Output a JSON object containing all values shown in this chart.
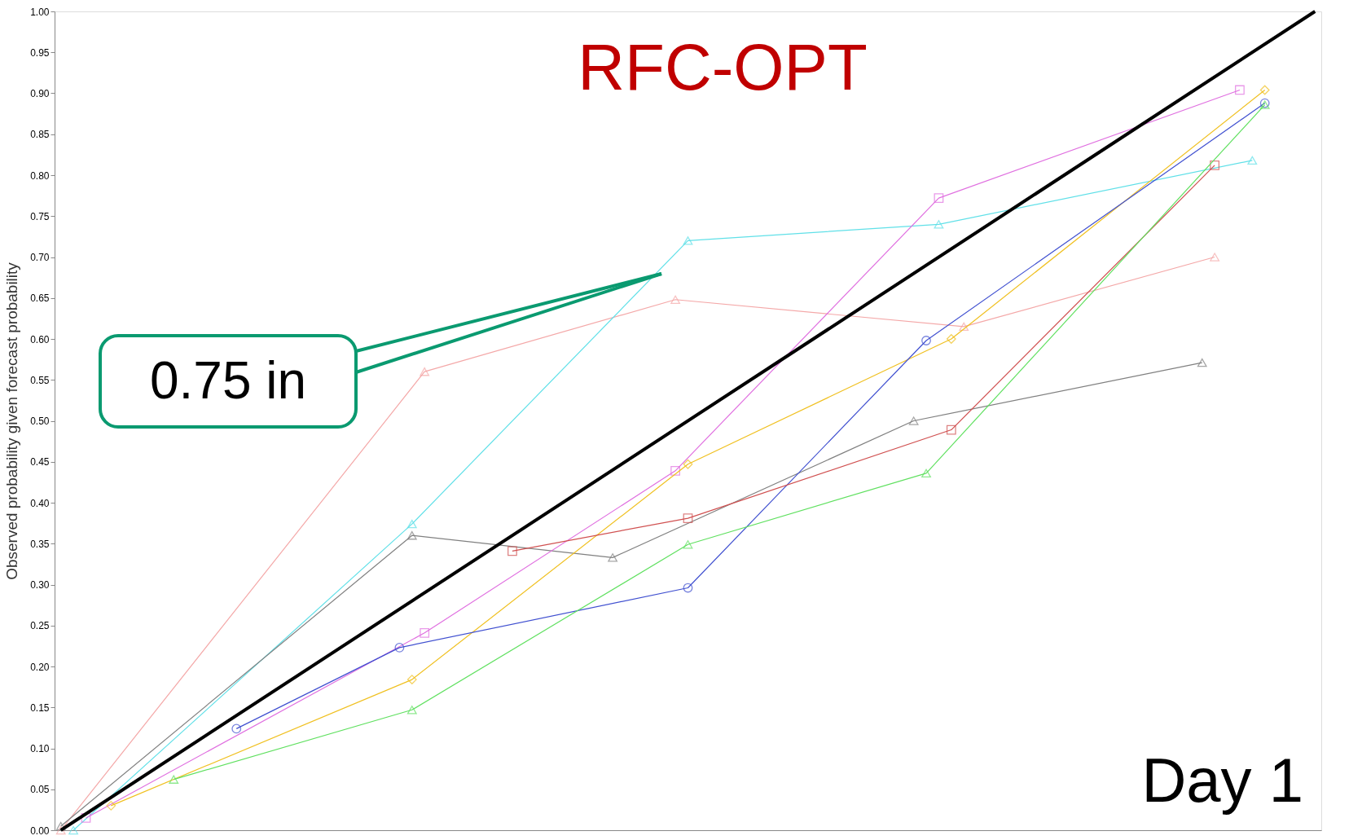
{
  "chart_data": {
    "type": "line",
    "title": "RFC-OPT",
    "ylabel": "Observed probability given forecast probability",
    "categories": [
      null,
      null,
      null,
      null,
      null,
      null,
      null,
      null,
      null,
      null,
      null,
      null,
      null,
      null,
      null,
      null,
      null,
      null,
      null,
      null,
      null,
      null,
      null,
      null,
      null,
      null,
      null,
      null,
      null,
      null,
      null,
      null,
      null,
      null,
      null,
      null,
      null,
      null,
      null,
      null,
      null,
      null,
      null,
      null,
      null,
      null,
      null,
      null,
      null,
      null,
      null,
      null,
      null,
      null,
      null,
      null,
      null,
      null,
      null,
      null,
      null,
      null,
      null,
      null,
      null,
      null,
      null,
      null,
      null,
      null,
      null,
      null,
      null,
      null,
      null,
      null,
      null,
      null,
      null,
      null,
      null,
      null,
      null,
      null,
      null,
      null,
      null,
      null,
      null,
      null,
      null,
      null,
      null,
      null,
      null,
      null,
      null,
      null,
      null,
      null,
      null
    ],
    "ylim": [
      0,
      1
    ],
    "yticks": [
      {
        "value": 0,
        "label": "0.00"
      },
      {
        "value": 0.05,
        "label": "0.05"
      },
      {
        "value": 0.1,
        "label": "0.10"
      },
      {
        "value": 0.15,
        "label": "0.15"
      },
      {
        "value": 0.2,
        "label": "0.20"
      },
      {
        "value": 0.25,
        "label": "0.25"
      },
      {
        "value": 0.3,
        "label": "0.30"
      },
      {
        "value": 0.35,
        "label": "0.35"
      },
      {
        "value": 0.4,
        "label": "0.40"
      },
      {
        "value": 0.45,
        "label": "0.45"
      },
      {
        "value": 0.5,
        "label": "0.50"
      },
      {
        "value": 0.55,
        "label": "0.55"
      },
      {
        "value": 0.6,
        "label": "0.60"
      },
      {
        "value": 0.65,
        "label": "0.65"
      },
      {
        "value": 0.7,
        "label": "0.70"
      },
      {
        "value": 0.75,
        "label": "0.75"
      },
      {
        "value": 0.8,
        "label": "0.80"
      },
      {
        "value": 0.85,
        "label": "0.85"
      },
      {
        "value": 0.9,
        "label": "0.90"
      },
      {
        "value": 0.95,
        "label": "0.95"
      },
      {
        "value": 1,
        "label": "1.00"
      }
    ],
    "tick_labels": "y",
    "grid": false,
    "series": [
      {
        "color": "#f4a8a8",
        "marker": "triangle",
        "values": [
          0.0,
          null,
          null,
          null,
          null,
          null,
          null,
          null,
          null,
          null,
          null,
          null,
          null,
          null,
          null,
          null,
          null,
          null,
          null,
          null,
          null,
          null,
          null,
          null,
          null,
          null,
          null,
          null,
          null,
          0.56,
          null,
          null,
          null,
          null,
          null,
          null,
          null,
          null,
          null,
          null,
          null,
          null,
          null,
          null,
          null,
          null,
          null,
          null,
          null,
          0.648,
          null,
          null,
          null,
          null,
          null,
          null,
          null,
          null,
          null,
          null,
          null,
          null,
          null,
          null,
          null,
          null,
          null,
          null,
          null,
          null,
          null,
          null,
          0.615,
          null,
          null,
          null,
          null,
          null,
          null,
          null,
          null,
          null,
          null,
          null,
          null,
          null,
          null,
          null,
          null,
          null,
          null,
          null,
          0.7,
          null,
          null,
          null,
          null,
          null,
          null,
          null,
          null
        ]
      },
      {
        "color": "#60e0e8",
        "marker": "triangle",
        "values": [
          null,
          0.0,
          null,
          null,
          null,
          null,
          null,
          null,
          null,
          null,
          null,
          null,
          null,
          null,
          null,
          null,
          null,
          null,
          null,
          null,
          null,
          null,
          null,
          null,
          null,
          null,
          null,
          null,
          0.374,
          null,
          null,
          null,
          null,
          null,
          null,
          null,
          null,
          null,
          null,
          null,
          null,
          null,
          null,
          null,
          null,
          null,
          null,
          null,
          null,
          null,
          0.72,
          null,
          null,
          null,
          null,
          null,
          null,
          null,
          null,
          null,
          null,
          null,
          null,
          null,
          null,
          null,
          null,
          null,
          null,
          null,
          0.74,
          null,
          null,
          null,
          null,
          null,
          null,
          null,
          null,
          null,
          null,
          null,
          null,
          null,
          null,
          null,
          null,
          null,
          null,
          null,
          null,
          null,
          null,
          null,
          null,
          0.818,
          null,
          null,
          null,
          null,
          null
        ]
      },
      {
        "color": "#808080",
        "marker": "triangle",
        "values": [
          0.005,
          null,
          null,
          null,
          null,
          null,
          null,
          null,
          null,
          null,
          null,
          null,
          null,
          null,
          null,
          null,
          null,
          null,
          null,
          null,
          null,
          null,
          null,
          null,
          null,
          null,
          null,
          null,
          0.36,
          null,
          null,
          null,
          null,
          null,
          null,
          null,
          null,
          null,
          null,
          null,
          null,
          null,
          null,
          null,
          0.333,
          null,
          null,
          null,
          null,
          null,
          null,
          null,
          null,
          null,
          null,
          null,
          null,
          null,
          null,
          null,
          null,
          null,
          null,
          null,
          null,
          null,
          null,
          null,
          0.5,
          null,
          null,
          null,
          null,
          null,
          null,
          null,
          null,
          null,
          null,
          null,
          null,
          null,
          null,
          null,
          null,
          null,
          null,
          null,
          null,
          null,
          null,
          0.571,
          null,
          null,
          null,
          null,
          null,
          null,
          null,
          null,
          null
        ]
      },
      {
        "color": "#e070e0",
        "marker": "square",
        "values": [
          null,
          null,
          0.015,
          null,
          null,
          null,
          null,
          null,
          null,
          null,
          null,
          null,
          null,
          null,
          null,
          null,
          null,
          null,
          null,
          null,
          null,
          null,
          null,
          null,
          null,
          null,
          null,
          null,
          null,
          0.241,
          null,
          null,
          null,
          null,
          null,
          null,
          null,
          null,
          null,
          null,
          null,
          null,
          null,
          null,
          null,
          null,
          null,
          null,
          null,
          0.439,
          null,
          null,
          null,
          null,
          null,
          null,
          null,
          null,
          null,
          null,
          null,
          null,
          null,
          null,
          null,
          null,
          null,
          null,
          null,
          null,
          0.772,
          null,
          null,
          null,
          null,
          null,
          null,
          null,
          null,
          null,
          null,
          null,
          null,
          null,
          null,
          null,
          null,
          null,
          null,
          null,
          null,
          null,
          null,
          null,
          0.904,
          null,
          null,
          null,
          null,
          null,
          null
        ]
      },
      {
        "color": "#f0c020",
        "marker": "diamond",
        "values": [
          null,
          null,
          null,
          null,
          0.03,
          null,
          null,
          null,
          null,
          null,
          null,
          null,
          null,
          null,
          null,
          null,
          null,
          null,
          null,
          null,
          null,
          null,
          null,
          null,
          null,
          null,
          null,
          null,
          0.184,
          null,
          null,
          null,
          null,
          null,
          null,
          null,
          null,
          null,
          null,
          null,
          null,
          null,
          null,
          null,
          null,
          null,
          null,
          null,
          null,
          null,
          0.447,
          null,
          null,
          null,
          null,
          null,
          null,
          null,
          null,
          null,
          null,
          null,
          null,
          null,
          null,
          null,
          null,
          null,
          null,
          null,
          null,
          0.6,
          null,
          null,
          null,
          null,
          null,
          null,
          null,
          null,
          null,
          null,
          null,
          null,
          null,
          null,
          null,
          null,
          null,
          null,
          null,
          null,
          null,
          null,
          null,
          null,
          0.904,
          null,
          null,
          null,
          null
        ]
      },
      {
        "color": "#4050d0",
        "marker": "circle",
        "values": [
          null,
          null,
          null,
          null,
          null,
          null,
          null,
          null,
          null,
          null,
          null,
          null,
          null,
          null,
          0.124,
          null,
          null,
          null,
          null,
          null,
          null,
          null,
          null,
          null,
          null,
          null,
          null,
          0.223,
          null,
          null,
          null,
          null,
          null,
          null,
          null,
          null,
          null,
          null,
          null,
          null,
          null,
          null,
          null,
          null,
          null,
          null,
          null,
          null,
          null,
          null,
          0.296,
          null,
          null,
          null,
          null,
          null,
          null,
          null,
          null,
          null,
          null,
          null,
          null,
          null,
          null,
          null,
          null,
          null,
          null,
          0.598,
          null,
          null,
          null,
          null,
          null,
          null,
          null,
          null,
          null,
          null,
          null,
          null,
          null,
          null,
          null,
          null,
          null,
          null,
          null,
          null,
          null,
          null,
          null,
          null,
          null,
          null,
          0.888,
          null,
          null,
          null,
          null
        ]
      },
      {
        "color": "#d05050",
        "marker": "square",
        "values": [
          null,
          null,
          null,
          null,
          null,
          null,
          null,
          null,
          null,
          null,
          null,
          null,
          null,
          null,
          null,
          null,
          null,
          null,
          null,
          null,
          null,
          null,
          null,
          null,
          null,
          null,
          null,
          null,
          null,
          null,
          null,
          null,
          null,
          null,
          null,
          null,
          0.341,
          null,
          null,
          null,
          null,
          null,
          null,
          null,
          null,
          null,
          null,
          null,
          null,
          null,
          0.381,
          null,
          null,
          null,
          null,
          null,
          null,
          null,
          null,
          null,
          null,
          null,
          null,
          null,
          null,
          null,
          null,
          null,
          null,
          null,
          null,
          0.489,
          null,
          null,
          null,
          null,
          null,
          null,
          null,
          null,
          null,
          null,
          null,
          null,
          null,
          null,
          null,
          null,
          null,
          null,
          null,
          null,
          0.812,
          null,
          null,
          null,
          null,
          null,
          null,
          null,
          null
        ]
      },
      {
        "color": "#60e060",
        "marker": "triangle",
        "values": [
          null,
          null,
          null,
          null,
          null,
          null,
          null,
          null,
          null,
          0.062,
          null,
          null,
          null,
          null,
          null,
          null,
          null,
          null,
          null,
          null,
          null,
          null,
          null,
          null,
          null,
          null,
          null,
          null,
          0.147,
          null,
          null,
          null,
          null,
          null,
          null,
          null,
          null,
          null,
          null,
          null,
          null,
          null,
          null,
          null,
          null,
          null,
          null,
          null,
          null,
          null,
          0.349,
          null,
          null,
          null,
          null,
          null,
          null,
          null,
          null,
          null,
          null,
          null,
          null,
          null,
          null,
          null,
          null,
          null,
          null,
          0.436,
          null,
          null,
          null,
          null,
          null,
          null,
          null,
          null,
          null,
          null,
          null,
          null,
          null,
          null,
          null,
          null,
          null,
          null,
          null,
          null,
          null,
          null,
          null,
          null,
          null,
          null,
          0.886,
          null,
          null,
          null,
          null
        ]
      },
      {
        "color": "#000000",
        "marker": "none",
        "values": [
          0,
          null,
          null,
          null,
          null,
          null,
          null,
          null,
          null,
          null,
          null,
          null,
          null,
          null,
          null,
          null,
          null,
          null,
          null,
          null,
          null,
          null,
          null,
          null,
          null,
          null,
          null,
          null,
          null,
          null,
          null,
          null,
          null,
          null,
          null,
          null,
          null,
          null,
          null,
          null,
          null,
          null,
          null,
          null,
          null,
          null,
          null,
          null,
          null,
          null,
          null,
          null,
          null,
          null,
          null,
          null,
          null,
          null,
          null,
          null,
          null,
          null,
          null,
          null,
          null,
          null,
          null,
          null,
          null,
          null,
          null,
          null,
          null,
          null,
          null,
          null,
          null,
          null,
          null,
          null,
          null,
          null,
          null,
          null,
          null,
          null,
          null,
          null,
          null,
          null,
          null,
          null,
          null,
          null,
          null,
          null,
          null,
          null,
          null,
          null,
          1
        ]
      }
    ],
    "annotations": [
      "0.75 in",
      "Day 1"
    ]
  }
}
